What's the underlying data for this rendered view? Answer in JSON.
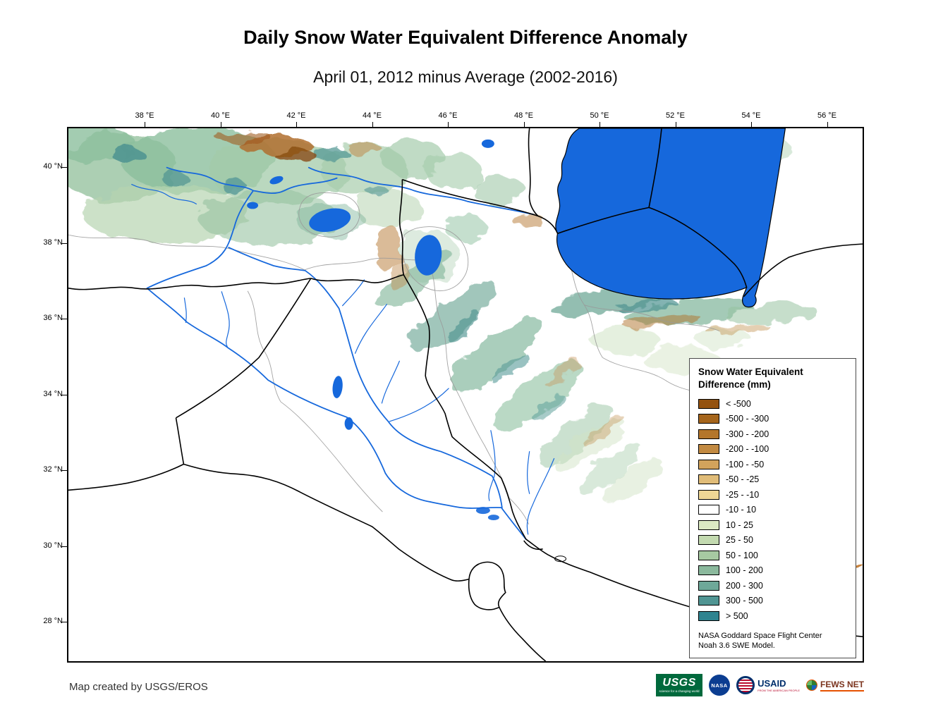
{
  "title": "Daily Snow Water Equivalent Difference Anomaly",
  "subtitle": "April 01, 2012 minus Average (2002-2016)",
  "map": {
    "lon_labels": [
      "38 °E",
      "40 °E",
      "42 °E",
      "44 °E",
      "46 °E",
      "48 °E",
      "50 °E",
      "52 °E",
      "54 °E",
      "56 °E"
    ],
    "lat_labels": [
      "40 °N",
      "38 °N",
      "36 °N",
      "34 °N",
      "32 °N",
      "30 °N",
      "28 °N"
    ],
    "colors": {
      "water": "#1668dc",
      "border": "#000000",
      "watershed": "#999999"
    }
  },
  "legend": {
    "title_line1": "Snow Water Equivalent",
    "title_line2": "Difference (mm)",
    "entries": [
      {
        "label": "< -500",
        "color": "#94520f"
      },
      {
        "label": "-500 - -300",
        "color": "#a5651c"
      },
      {
        "label": "-300 - -200",
        "color": "#b4762b"
      },
      {
        "label": "-200 - -100",
        "color": "#c28a42"
      },
      {
        "label": "-100 - -50",
        "color": "#d2a35c"
      },
      {
        "label": "-50 - -25",
        "color": "#e0bc78"
      },
      {
        "label": "-25 - -10",
        "color": "#efd795"
      },
      {
        "label": "-10 - 10",
        "color": "#ffffff"
      },
      {
        "label": "10 - 25",
        "color": "#dceac3"
      },
      {
        "label": "25 - 50",
        "color": "#c3dab0"
      },
      {
        "label": "50 - 100",
        "color": "#a7c9a2"
      },
      {
        "label": "100 - 200",
        "color": "#8bb99d"
      },
      {
        "label": "200 - 300",
        "color": "#6ea899"
      },
      {
        "label": "300 - 500",
        "color": "#509593"
      },
      {
        "label": "> 500",
        "color": "#2f8490"
      }
    ],
    "source_line1": "NASA Goddard Space Flight Center",
    "source_line2": "Noah 3.6 SWE Model."
  },
  "footer": {
    "credit": "Map created by USGS/EROS",
    "logos": {
      "usgs": {
        "label": "USGS",
        "tagline": "science for a changing world",
        "color": "#00693C"
      },
      "nasa": {
        "label": "NASA",
        "color": "#0B3D91"
      },
      "usaid": {
        "label": "USAID",
        "tagline": "FROM THE AMERICAN PEOPLE",
        "color": "#002F6C",
        "accent": "#BA0C2F"
      },
      "fewsnet": {
        "label": "FEWS NET",
        "color": "#7b341e",
        "accent": "#e65100"
      }
    }
  }
}
